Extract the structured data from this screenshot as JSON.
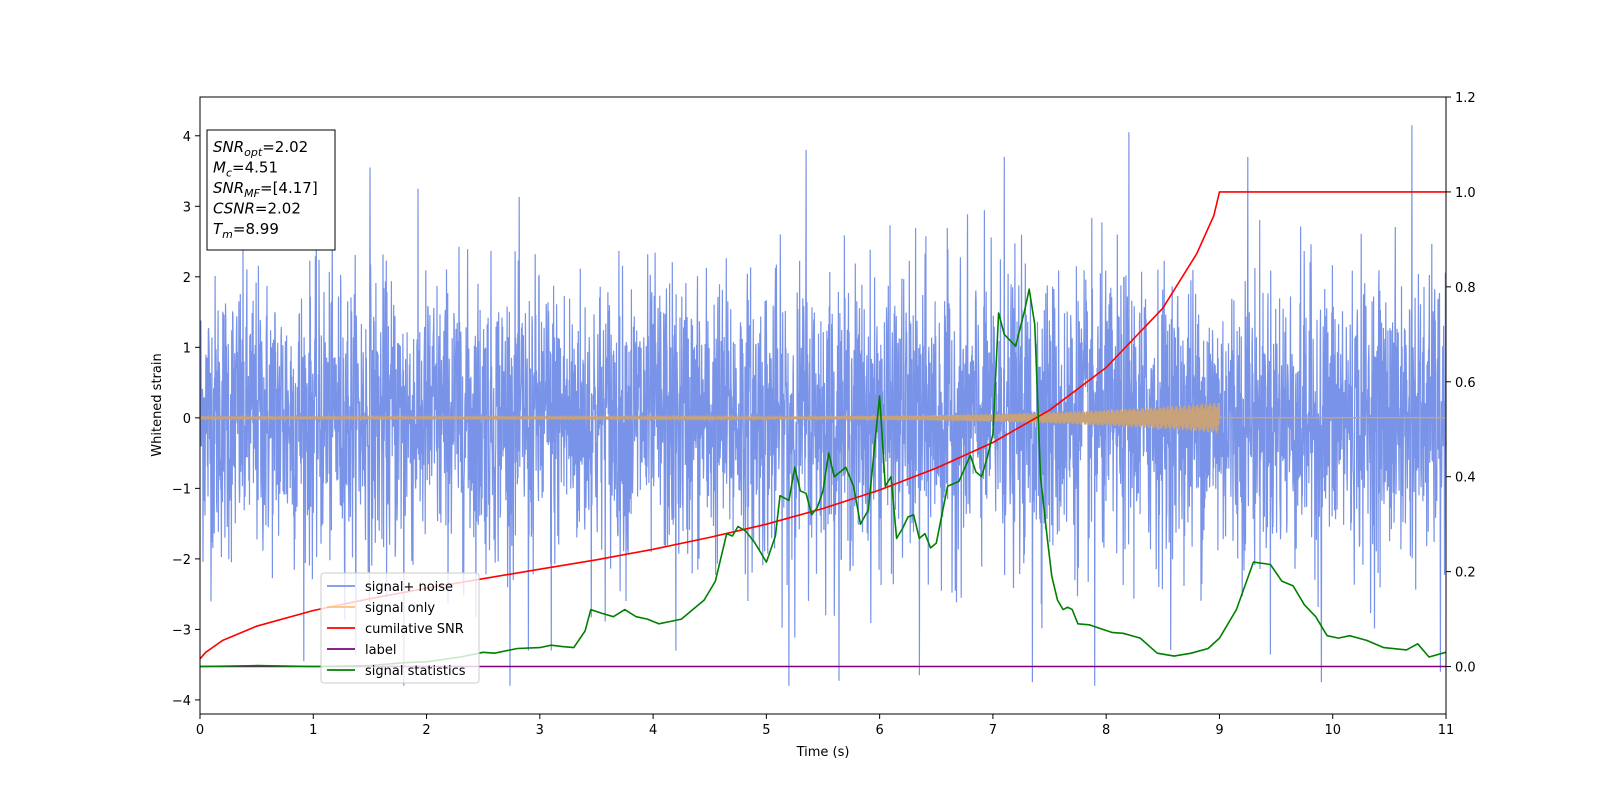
{
  "chart_data": {
    "type": "line",
    "xlabel": "Time (s)",
    "ylabel": "Whitened strain",
    "xlim": [
      0,
      11
    ],
    "ylim_left": [
      -4.2,
      4.55
    ],
    "ylim_right": [
      -0.1,
      1.2
    ],
    "x_ticks": [
      0,
      1,
      2,
      3,
      4,
      5,
      6,
      7,
      8,
      9,
      10,
      11
    ],
    "y_left_ticks": [
      -4,
      -3,
      -2,
      -1,
      0,
      1,
      2,
      3,
      4
    ],
    "y_right_ticks": [
      0.0,
      0.2,
      0.4,
      0.6,
      0.8,
      1.0,
      1.2
    ],
    "x_tick_labels": [
      "0",
      "1",
      "2",
      "3",
      "4",
      "5",
      "6",
      "7",
      "8",
      "9",
      "10",
      "11"
    ],
    "y_left_tick_labels": [
      "−4",
      "−3",
      "−2",
      "−1",
      "0",
      "1",
      "2",
      "3",
      "4"
    ],
    "y_right_tick_labels": [
      "0.0",
      "0.2",
      "0.4",
      "0.6",
      "0.8",
      "1.0",
      "1.2"
    ],
    "grid": false,
    "legend_position": "lower-left",
    "stats_box": [
      {
        "sym": "SNR",
        "sub": "opt",
        "val": "=2.02"
      },
      {
        "sym": "M",
        "sub": "c",
        "val": "=4.51"
      },
      {
        "sym": "SNR",
        "sub": "MF",
        "val": "=[4.17]"
      },
      {
        "sym": "CSNR",
        "sub": "",
        "val": "=2.02"
      },
      {
        "sym": "T",
        "sub": "m",
        "val": "=8.99"
      }
    ],
    "series": [
      {
        "name": "signal+ noise",
        "color": "#7893e8",
        "axis": "left",
        "kind": "noise",
        "envelope": {
          "typical": 1.6,
          "min": -3.8,
          "max": 4.2
        },
        "spikes": [
          {
            "x": 1.5,
            "y": 3.55
          },
          {
            "x": 1.8,
            "y": -3.8
          },
          {
            "x": 2.9,
            "y": -3.3
          },
          {
            "x": 3.1,
            "y": -3.3
          },
          {
            "x": 4.2,
            "y": -3.3
          },
          {
            "x": 5.2,
            "y": -3.8
          },
          {
            "x": 5.35,
            "y": 3.8
          },
          {
            "x": 6.35,
            "y": -3.65
          },
          {
            "x": 7.1,
            "y": 3.7
          },
          {
            "x": 7.35,
            "y": -3.75
          },
          {
            "x": 7.9,
            "y": -3.8
          },
          {
            "x": 8.2,
            "y": 4.05
          },
          {
            "x": 9.25,
            "y": 3.7
          },
          {
            "x": 9.9,
            "y": -3.75
          },
          {
            "x": 10.7,
            "y": 4.15
          },
          {
            "x": 10.95,
            "y": -3.6
          }
        ]
      },
      {
        "name": "signal only",
        "color": "#c8a27a",
        "axis": "left",
        "kind": "chirp",
        "end_time": 9.0,
        "amplitude_start": 0.01,
        "amplitude_end": 0.22
      },
      {
        "name": "cumilative SNR",
        "color": "#ff0000",
        "axis": "right",
        "x": [
          0,
          0.05,
          0.2,
          0.5,
          1.0,
          1.5,
          2.0,
          2.5,
          3.0,
          3.5,
          4.0,
          4.5,
          5.0,
          5.5,
          6.0,
          6.5,
          7.0,
          7.5,
          8.0,
          8.5,
          8.8,
          8.95,
          9.0,
          11.0
        ],
        "y": [
          0.016,
          0.03,
          0.055,
          0.085,
          0.118,
          0.143,
          0.165,
          0.185,
          0.205,
          0.225,
          0.247,
          0.272,
          0.3,
          0.333,
          0.372,
          0.418,
          0.472,
          0.54,
          0.63,
          0.755,
          0.87,
          0.95,
          1.0,
          1.0
        ]
      },
      {
        "name": "label",
        "color": "#800080",
        "axis": "right",
        "x": [
          0,
          11
        ],
        "y": [
          0,
          0
        ]
      },
      {
        "name": "signal statistics",
        "color": "#008000",
        "axis": "right",
        "x": [
          0,
          0.5,
          1.0,
          1.5,
          1.8,
          2.0,
          2.3,
          2.5,
          2.6,
          2.8,
          3.0,
          3.1,
          3.2,
          3.3,
          3.4,
          3.45,
          3.55,
          3.65,
          3.75,
          3.85,
          3.95,
          4.05,
          4.15,
          4.25,
          4.35,
          4.45,
          4.55,
          4.65,
          4.7,
          4.75,
          4.82,
          4.9,
          5.0,
          5.08,
          5.12,
          5.2,
          5.25,
          5.3,
          5.35,
          5.4,
          5.45,
          5.5,
          5.55,
          5.6,
          5.7,
          5.77,
          5.83,
          5.9,
          6.0,
          6.05,
          6.1,
          6.15,
          6.2,
          6.25,
          6.3,
          6.35,
          6.4,
          6.45,
          6.5,
          6.55,
          6.6,
          6.7,
          6.8,
          6.85,
          6.9,
          6.95,
          7.0,
          7.05,
          7.1,
          7.2,
          7.28,
          7.32,
          7.37,
          7.42,
          7.48,
          7.52,
          7.57,
          7.62,
          7.66,
          7.7,
          7.75,
          7.85,
          7.95,
          8.05,
          8.15,
          8.3,
          8.45,
          8.6,
          8.75,
          8.9,
          9.0,
          9.15,
          9.3,
          9.45,
          9.55,
          9.65,
          9.75,
          9.85,
          9.95,
          10.05,
          10.15,
          10.3,
          10.45,
          10.65,
          10.75,
          10.85,
          11.0
        ],
        "y": [
          0.0,
          0.002,
          0.0,
          0.002,
          0.008,
          0.01,
          0.02,
          0.03,
          0.028,
          0.038,
          0.04,
          0.045,
          0.042,
          0.04,
          0.075,
          0.12,
          0.112,
          0.105,
          0.12,
          0.105,
          0.1,
          0.09,
          0.095,
          0.1,
          0.12,
          0.14,
          0.18,
          0.28,
          0.275,
          0.295,
          0.285,
          0.26,
          0.22,
          0.275,
          0.36,
          0.35,
          0.42,
          0.37,
          0.365,
          0.32,
          0.335,
          0.37,
          0.45,
          0.4,
          0.42,
          0.38,
          0.3,
          0.33,
          0.57,
          0.38,
          0.4,
          0.27,
          0.29,
          0.315,
          0.32,
          0.27,
          0.28,
          0.25,
          0.26,
          0.32,
          0.38,
          0.39,
          0.445,
          0.41,
          0.4,
          0.44,
          0.49,
          0.745,
          0.7,
          0.675,
          0.75,
          0.795,
          0.72,
          0.4,
          0.27,
          0.19,
          0.14,
          0.12,
          0.125,
          0.12,
          0.09,
          0.088,
          0.08,
          0.072,
          0.07,
          0.06,
          0.028,
          0.022,
          0.028,
          0.038,
          0.06,
          0.12,
          0.22,
          0.215,
          0.18,
          0.17,
          0.13,
          0.105,
          0.065,
          0.06,
          0.065,
          0.055,
          0.04,
          0.035,
          0.048,
          0.02,
          0.03
        ]
      }
    ]
  }
}
